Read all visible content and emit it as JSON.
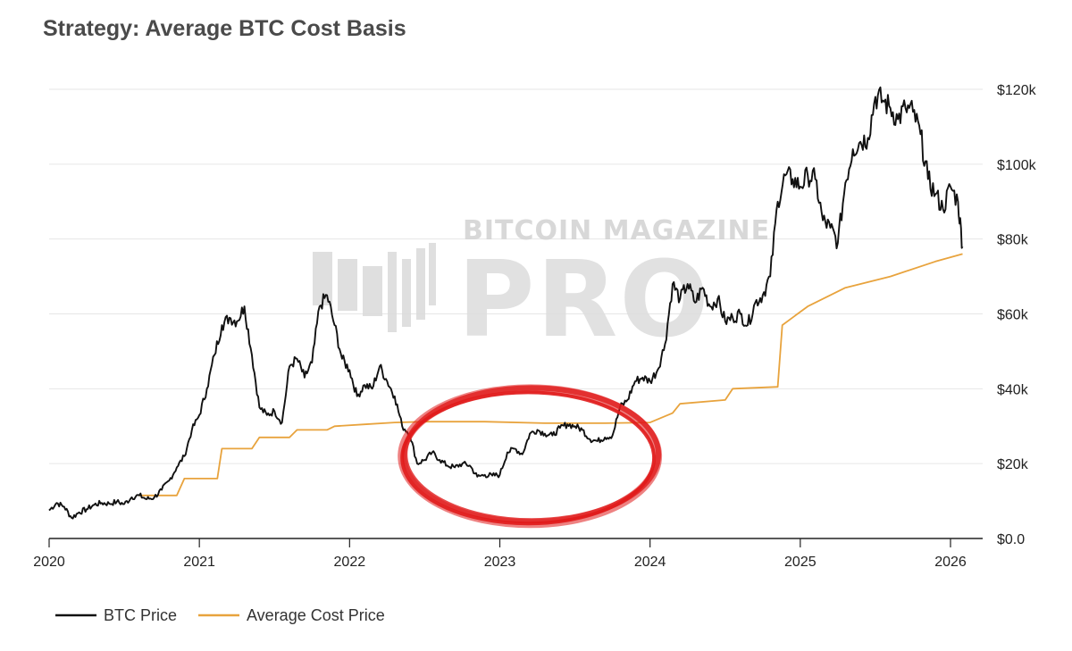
{
  "chart_data": {
    "type": "line",
    "title": "Strategy: Average BTC Cost Basis",
    "xlabel": "",
    "ylabel": "",
    "xlim": [
      2020.0,
      2026.3
    ],
    "ylim": [
      0,
      125000
    ],
    "x_ticks": [
      {
        "value": 2020,
        "label": "2020"
      },
      {
        "value": 2021,
        "label": "2021"
      },
      {
        "value": 2022,
        "label": "2022"
      },
      {
        "value": 2023,
        "label": "2023"
      },
      {
        "value": 2024,
        "label": "2024"
      },
      {
        "value": 2025,
        "label": "2025"
      },
      {
        "value": 2026,
        "label": "2026"
      }
    ],
    "y_ticks": [
      {
        "value": 0,
        "label": "$0.0"
      },
      {
        "value": 20000,
        "label": "$20k"
      },
      {
        "value": 40000,
        "label": "$40k"
      },
      {
        "value": 60000,
        "label": "$60k"
      },
      {
        "value": 80000,
        "label": "$80k"
      },
      {
        "value": 100000,
        "label": "$100k"
      },
      {
        "value": 120000,
        "label": "$120k"
      }
    ],
    "grid": true,
    "legend_position": "bottom-left",
    "series": [
      {
        "name": "BTC Price",
        "color": "#111111",
        "x": [
          2020.0,
          2020.05,
          2020.1,
          2020.15,
          2020.2,
          2020.25,
          2020.3,
          2020.35,
          2020.4,
          2020.45,
          2020.5,
          2020.55,
          2020.6,
          2020.65,
          2020.7,
          2020.75,
          2020.8,
          2020.85,
          2020.9,
          2020.95,
          2021.0,
          2021.05,
          2021.1,
          2021.15,
          2021.2,
          2021.25,
          2021.3,
          2021.35,
          2021.4,
          2021.45,
          2021.5,
          2021.55,
          2021.6,
          2021.65,
          2021.7,
          2021.75,
          2021.8,
          2021.85,
          2021.9,
          2021.95,
          2022.0,
          2022.05,
          2022.1,
          2022.15,
          2022.2,
          2022.25,
          2022.3,
          2022.35,
          2022.4,
          2022.45,
          2022.5,
          2022.55,
          2022.6,
          2022.65,
          2022.7,
          2022.75,
          2022.8,
          2022.85,
          2022.9,
          2022.95,
          2023.0,
          2023.05,
          2023.1,
          2023.15,
          2023.2,
          2023.25,
          2023.3,
          2023.35,
          2023.4,
          2023.45,
          2023.5,
          2023.55,
          2023.6,
          2023.65,
          2023.7,
          2023.75,
          2023.8,
          2023.85,
          2023.9,
          2023.95,
          2024.0,
          2024.05,
          2024.1,
          2024.15,
          2024.2,
          2024.25,
          2024.3,
          2024.35,
          2024.4,
          2024.45,
          2024.5,
          2024.55,
          2024.6,
          2024.65,
          2024.7,
          2024.75,
          2024.8,
          2024.85,
          2024.9,
          2024.95,
          2025.0,
          2025.05,
          2025.1,
          2025.15,
          2025.2,
          2025.25,
          2025.3,
          2025.35,
          2025.4,
          2025.45,
          2025.5,
          2025.55,
          2025.6,
          2025.65,
          2025.7,
          2025.75,
          2025.8,
          2025.85,
          2025.9,
          2025.95,
          2026.0,
          2026.05,
          2026.08
        ],
        "values": [
          7500,
          9500,
          8500,
          5500,
          7000,
          7800,
          9000,
          9500,
          9300,
          9800,
          9200,
          11000,
          11500,
          10500,
          11000,
          13000,
          15500,
          19000,
          22000,
          29000,
          33000,
          40000,
          49000,
          57000,
          59000,
          58000,
          62000,
          49000,
          35000,
          33000,
          34000,
          31000,
          46000,
          48000,
          43000,
          47000,
          62000,
          65000,
          57000,
          48000,
          45000,
          38000,
          41000,
          40000,
          46000,
          42000,
          38000,
          30000,
          28000,
          20000,
          21000,
          23000,
          21000,
          19500,
          19000,
          20000,
          19500,
          16500,
          17000,
          16800,
          17000,
          23000,
          24000,
          22500,
          28000,
          29000,
          28000,
          27500,
          29500,
          30500,
          30000,
          29000,
          26500,
          26000,
          27000,
          27500,
          35000,
          37000,
          42000,
          43000,
          42000,
          45000,
          52000,
          68000,
          64000,
          68000,
          63000,
          67000,
          62000,
          64000,
          58000,
          59000,
          60000,
          57000,
          63000,
          65000,
          70000,
          90000,
          97000,
          96000,
          94000,
          97000,
          96000,
          85000,
          83000,
          79000,
          95000,
          104000,
          106000,
          107000,
          118000,
          117000,
          115000,
          112000,
          115000,
          114000,
          108000,
          96000,
          92000,
          88000,
          94000,
          90000,
          78000
        ]
      },
      {
        "name": "Average Cost Price",
        "color": "#e8a33d",
        "x": [
          2020.6,
          2020.85,
          2020.9,
          2021.12,
          2021.15,
          2021.35,
          2021.4,
          2021.6,
          2021.65,
          2021.85,
          2021.9,
          2022.1,
          2022.3,
          2022.5,
          2022.9,
          2023.3,
          2023.7,
          2024.0,
          2024.15,
          2024.2,
          2024.5,
          2024.55,
          2024.85,
          2024.88,
          2025.05,
          2025.3,
          2025.6,
          2025.9,
          2026.08
        ],
        "values": [
          11500,
          11500,
          16000,
          16000,
          24000,
          24000,
          27000,
          27000,
          29000,
          29000,
          30000,
          30500,
          31000,
          31200,
          31200,
          30800,
          30800,
          31000,
          33500,
          36000,
          37000,
          40000,
          40500,
          57000,
          62000,
          67000,
          70000,
          74000,
          76000
        ]
      }
    ],
    "annotations": [
      {
        "type": "ellipse",
        "color": "#e01b1b",
        "x_range": [
          2022.35,
          2024.05
        ],
        "y_range": [
          4000,
          40000
        ],
        "note": "hand-drawn red ellipse highlighting 2022-2023 period"
      }
    ],
    "watermark": {
      "top_text": "BITCOIN MAGAZINE",
      "main_text": "PRO"
    }
  }
}
